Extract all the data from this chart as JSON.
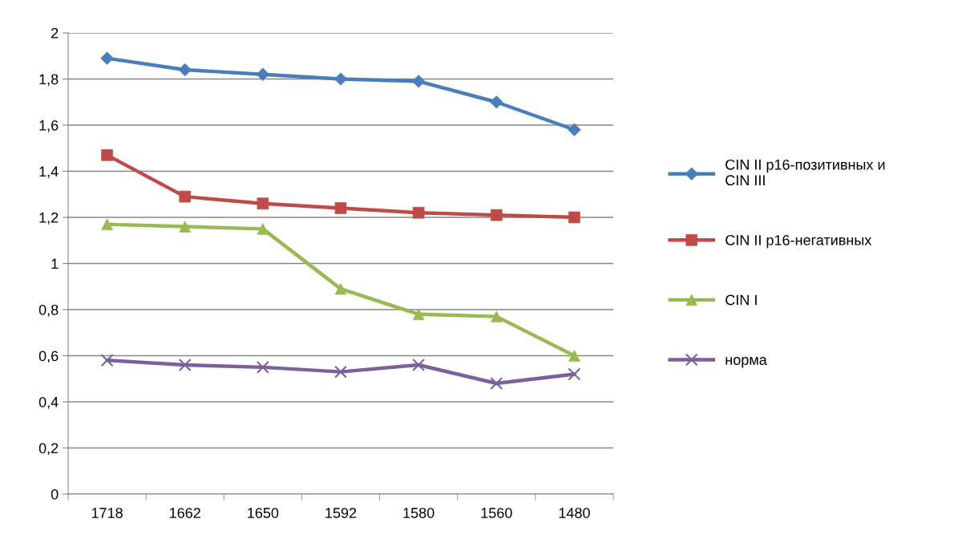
{
  "chart_data": {
    "type": "line",
    "categories": [
      "1718",
      "1662",
      "1650",
      "1592",
      "1580",
      "1560",
      "1480"
    ],
    "series": [
      {
        "name": "CIN II p16-позитивных и\nCIN III",
        "color": "#4a7ebb",
        "marker": "diamond",
        "values": [
          1.89,
          1.84,
          1.82,
          1.8,
          1.79,
          1.7,
          1.58
        ]
      },
      {
        "name": "CIN II p16-негативных",
        "color": "#be4b48",
        "marker": "square",
        "values": [
          1.47,
          1.29,
          1.26,
          1.24,
          1.22,
          1.21,
          1.2
        ]
      },
      {
        "name": "CIN I",
        "color": "#98b954",
        "marker": "triangle",
        "values": [
          1.17,
          1.16,
          1.15,
          0.89,
          0.78,
          0.77,
          0.6
        ]
      },
      {
        "name": "норма",
        "color": "#7d5fa0",
        "marker": "cross",
        "values": [
          0.58,
          0.56,
          0.55,
          0.53,
          0.56,
          0.48,
          0.52
        ]
      }
    ],
    "ylim": [
      0,
      2
    ],
    "yticks": [
      0,
      {
        "value": 0.2,
        "label": "0,2"
      },
      {
        "value": 0.4,
        "label": "0,4"
      },
      {
        "value": 0.6,
        "label": "0,6"
      },
      {
        "value": 0.8,
        "label": "0,8"
      },
      1,
      {
        "value": 1.2,
        "label": "1,2"
      },
      {
        "value": 1.4,
        "label": "1,4"
      },
      {
        "value": 1.6,
        "label": "1,6"
      },
      {
        "value": 1.8,
        "label": "1,8"
      },
      2
    ],
    "grid": "y",
    "legend": "right",
    "line_style": "solid"
  }
}
